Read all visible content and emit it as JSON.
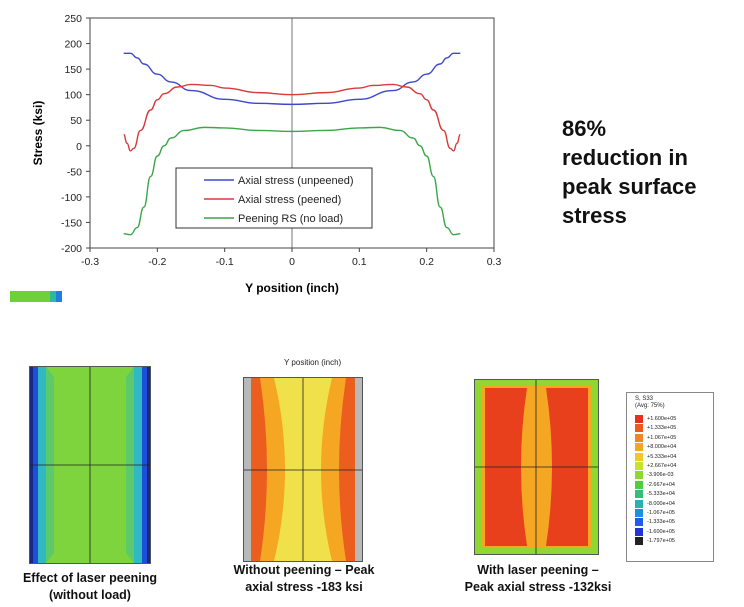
{
  "chart_data": {
    "type": "line",
    "xlabel": "Y position (inch)",
    "ylabel": "Stress (ksi)",
    "xlim": [
      -0.3,
      0.3
    ],
    "ylim": [
      -200,
      250
    ],
    "xticks": [
      "-0.3",
      "-0.2",
      "-0.1",
      "0",
      "0.1",
      "0.2",
      "0.3"
    ],
    "yticks": [
      "250",
      "200",
      "150",
      "100",
      "50",
      "0",
      "-50",
      "-100",
      "-150",
      "-200"
    ],
    "grid": false,
    "legend_position": "lower-center",
    "series": [
      {
        "name": "Axial stress (unpeened)",
        "color": "#3f48cc",
        "x": [
          -0.25,
          -0.24,
          -0.23,
          -0.22,
          -0.2,
          -0.18,
          -0.15,
          -0.1,
          -0.05,
          0,
          0.05,
          0.1,
          0.15,
          0.18,
          0.2,
          0.22,
          0.23,
          0.24,
          0.25
        ],
        "y": [
          181,
          181,
          172,
          160,
          140,
          125,
          108,
          91,
          83,
          81,
          83,
          91,
          108,
          125,
          140,
          160,
          172,
          181,
          181
        ]
      },
      {
        "name": "Axial stress (peened)",
        "color": "#d9393a",
        "x": [
          -0.25,
          -0.245,
          -0.24,
          -0.235,
          -0.225,
          -0.21,
          -0.2,
          -0.19,
          -0.17,
          -0.15,
          -0.12,
          -0.1,
          -0.05,
          0,
          0.05,
          0.1,
          0.12,
          0.15,
          0.17,
          0.19,
          0.2,
          0.21,
          0.225,
          0.235,
          0.24,
          0.245,
          0.25
        ],
        "y": [
          22,
          5,
          -10,
          -5,
          30,
          70,
          90,
          102,
          115,
          120,
          118,
          113,
          104,
          100,
          104,
          113,
          118,
          120,
          115,
          102,
          90,
          70,
          30,
          -5,
          -10,
          5,
          22
        ]
      },
      {
        "name": "Peening RS (no load)",
        "color": "#3aa64a",
        "x": [
          -0.25,
          -0.24,
          -0.23,
          -0.22,
          -0.21,
          -0.2,
          -0.19,
          -0.18,
          -0.16,
          -0.13,
          -0.1,
          -0.05,
          0,
          0.05,
          0.1,
          0.13,
          0.16,
          0.18,
          0.19,
          0.2,
          0.21,
          0.22,
          0.23,
          0.24,
          0.25
        ],
        "y": [
          -172,
          -174,
          -160,
          -120,
          -60,
          -20,
          0,
          15,
          30,
          36,
          35,
          30,
          28,
          30,
          35,
          36,
          30,
          15,
          0,
          -20,
          -60,
          -120,
          -160,
          -174,
          -172
        ]
      }
    ]
  },
  "callout": {
    "lines": [
      "86%",
      "reduction in",
      "peak surface",
      "stress"
    ]
  },
  "panels": {
    "top_axis_label": "Y position (inch)",
    "captions": {
      "left": [
        "Effect of laser peening",
        "(without load)"
      ],
      "middle": [
        "Without peening – Peak",
        "axial stress -183 ksi"
      ],
      "right": [
        "With laser peening –",
        "Peak axial stress -132ksi"
      ]
    }
  },
  "colorbar": {
    "title_lines": [
      "S, S33",
      "(Avg: 75%)"
    ],
    "labels": [
      "+1.600e+05",
      "+1.333e+05",
      "+1.067e+05",
      "+8.000e+04",
      "+5.333e+04",
      "+2.667e+04",
      "-3.906e-03",
      "-2.667e+04",
      "-5.333e+04",
      "-8.000e+04",
      "-1.067e+05",
      "-1.333e+05",
      "-1.600e+05",
      "-1.797e+05"
    ],
    "colors": [
      "#e8311c",
      "#ee5a1e",
      "#f3861f",
      "#f5a623",
      "#f0c928",
      "#c9e02f",
      "#8fd832",
      "#4fcd3a",
      "#2fc07a",
      "#22b3b8",
      "#1f8fe0",
      "#1f5ee8",
      "#2236d8",
      "#222222"
    ]
  }
}
